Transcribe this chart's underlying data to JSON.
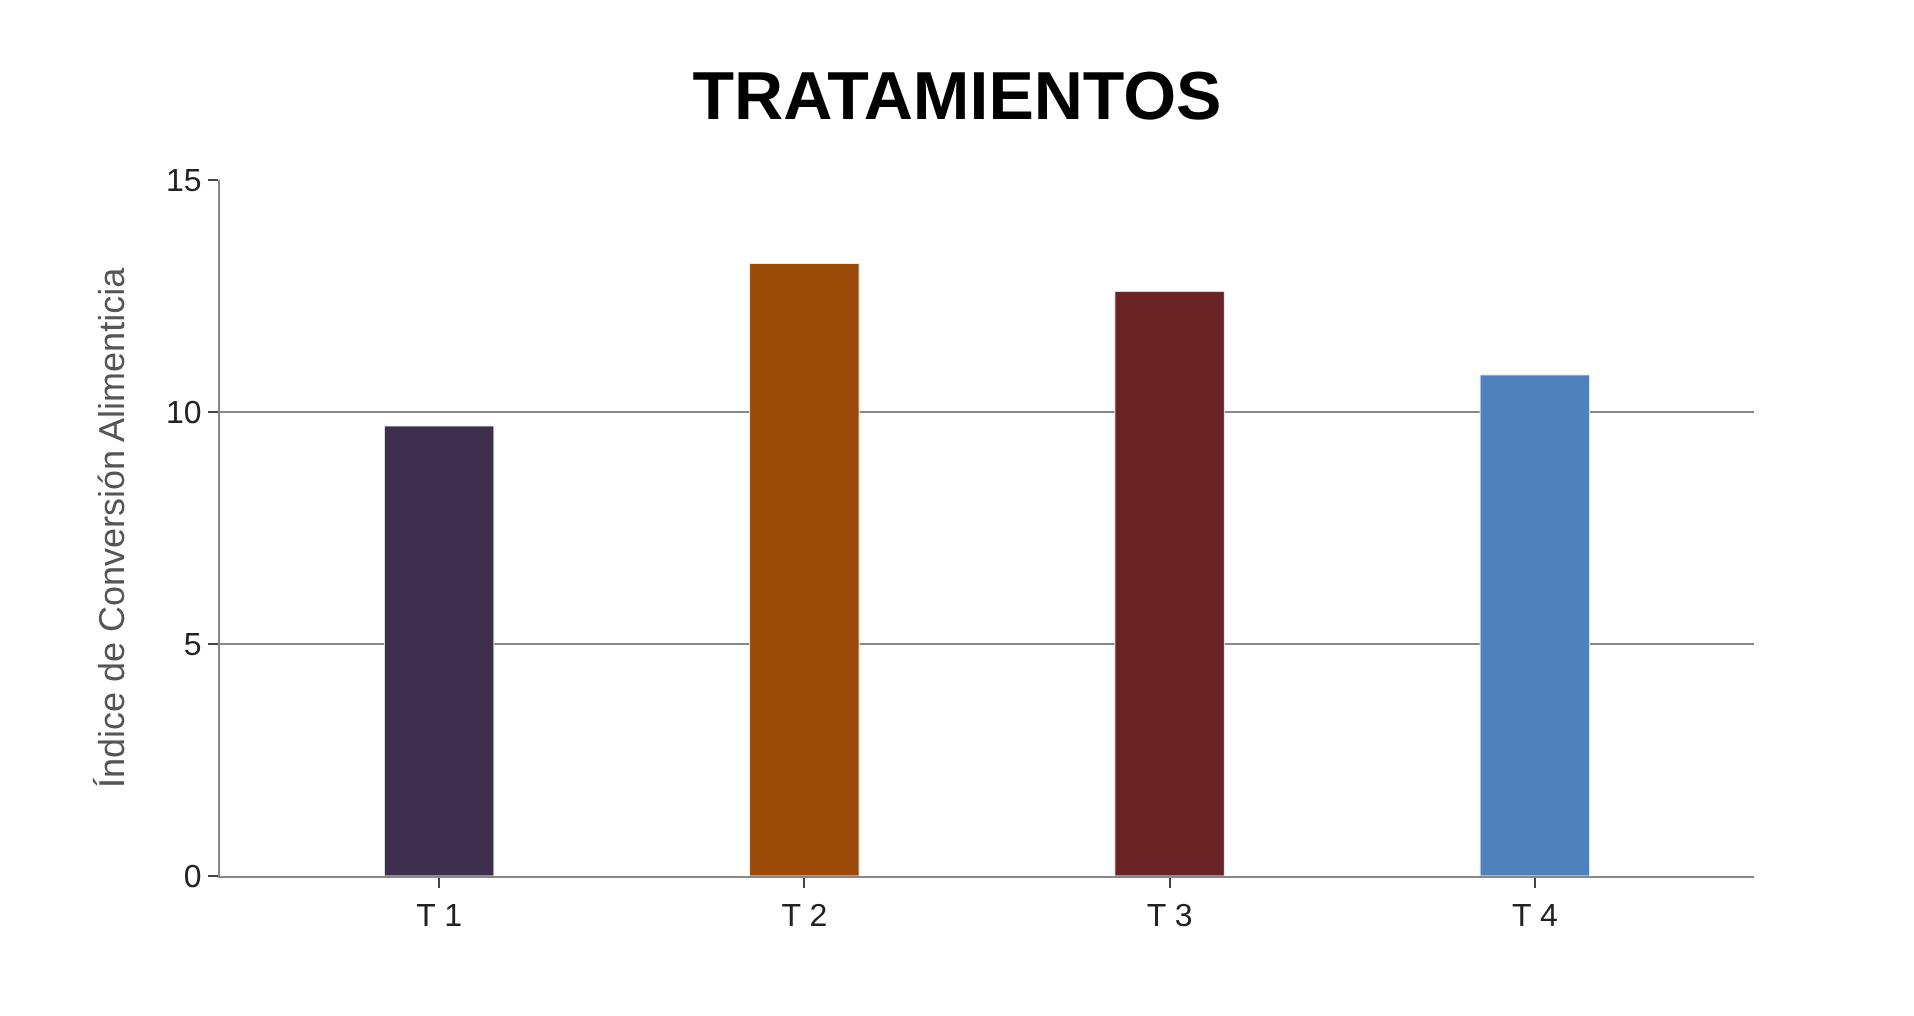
{
  "chart_data": {
    "type": "bar",
    "title": "TRATAMIENTOS",
    "ylabel": "Índice de Conversión Alimenticia",
    "categories": [
      "T 1",
      "T 2",
      "T 3",
      "T 4"
    ],
    "values": [
      9.7,
      13.2,
      12.6,
      10.8
    ],
    "colors": [
      "#3f2f4f",
      "#9a4a06",
      "#6a2425",
      "#4f81bd"
    ],
    "ylim": [
      0,
      15
    ],
    "yticks": [
      0,
      5,
      10,
      15
    ],
    "grid": "y"
  }
}
